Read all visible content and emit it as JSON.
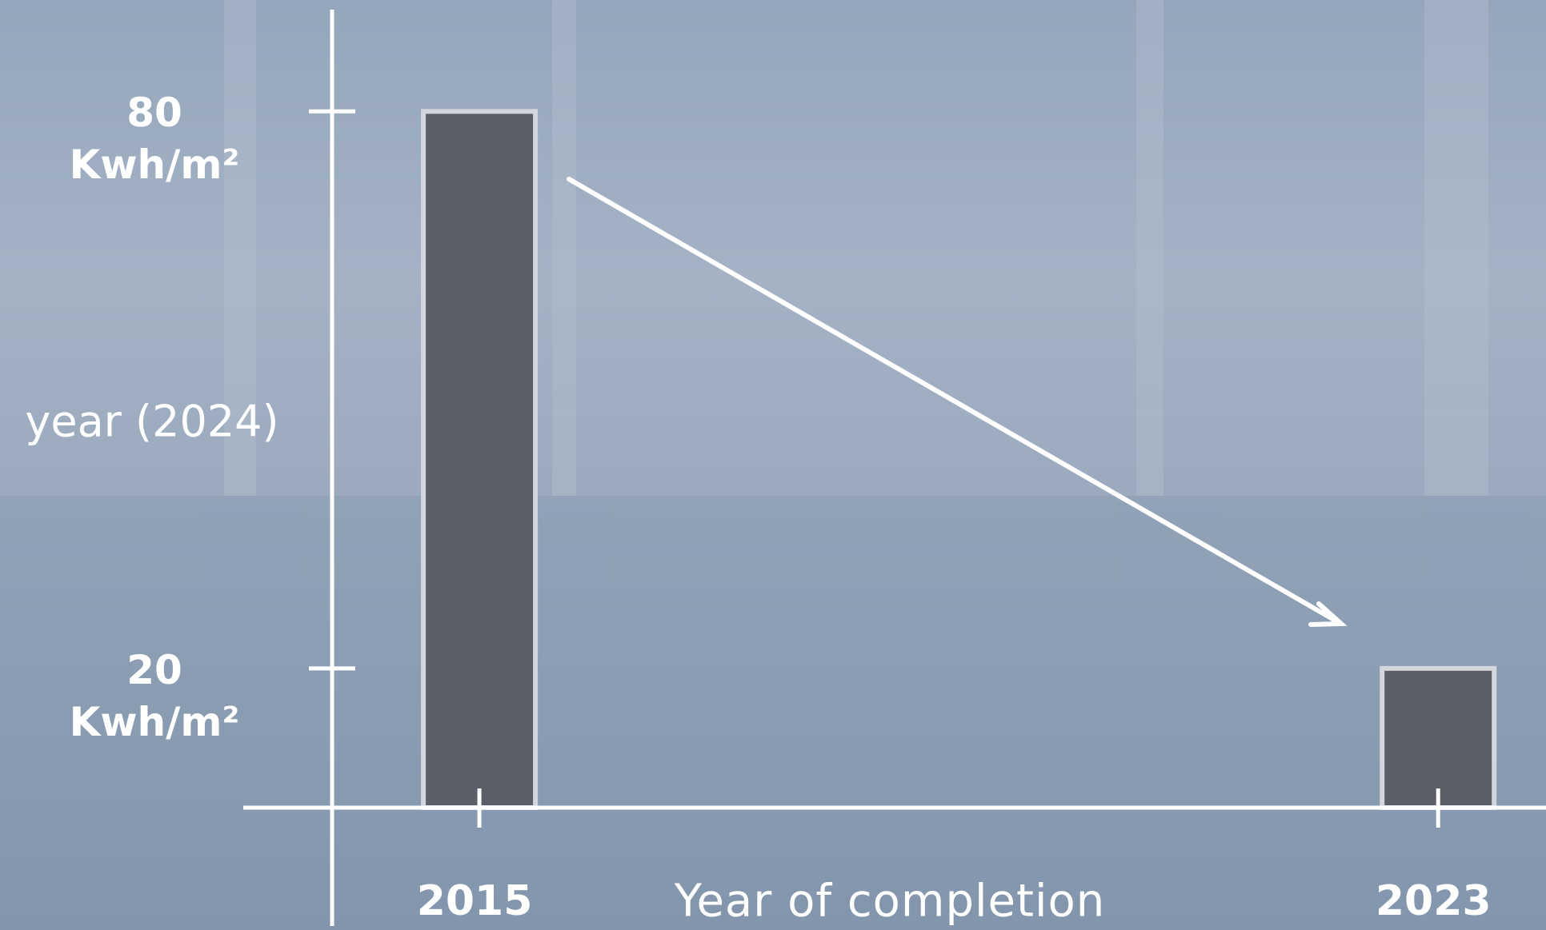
{
  "chart_data": {
    "type": "bar",
    "x_label": "Year of completion",
    "annotation": "year (2024)",
    "x": [
      2015,
      2023
    ],
    "values": [
      80,
      20
    ],
    "color": "#5b5e67",
    "xlim": [
      2011,
      2023.9
    ],
    "xticks": [
      2015,
      2023
    ],
    "ylim": [
      5,
      92
    ],
    "yticks": [
      {
        "value": 20,
        "label": "20 Kwh/m²"
      },
      {
        "value": 80,
        "label": "80 Kwh/m²"
      }
    ]
  }
}
